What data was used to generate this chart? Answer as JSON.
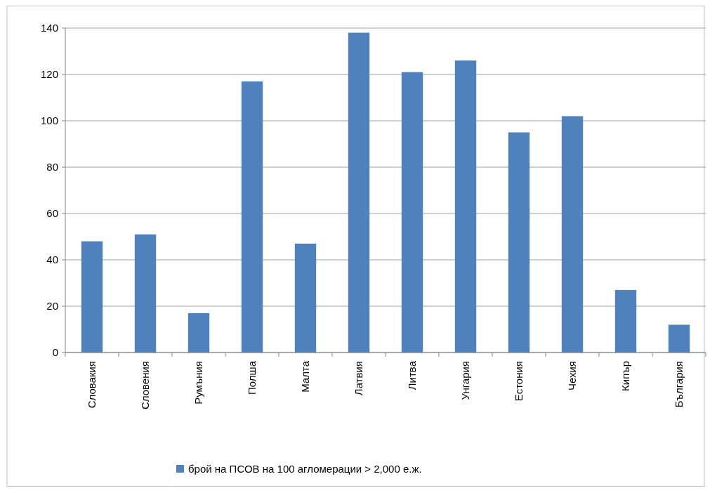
{
  "chart_data": {
    "type": "bar",
    "categories": [
      "Словакия",
      "Словения",
      "Румъния",
      "Полша",
      "Малта",
      "Латвия",
      "Литва",
      "Унгария",
      "Естония",
      "Чехия",
      "Кипър",
      "България"
    ],
    "series": [
      {
        "name": "брой на ПСОВ на 100 агломерации > 2,000 е.ж.",
        "color": "#4f81bd",
        "values": [
          48,
          51,
          17,
          117,
          47,
          138,
          121,
          126,
          95,
          102,
          27,
          12
        ]
      }
    ],
    "ylim": [
      0,
      140
    ],
    "yticks": [
      0,
      20,
      40,
      60,
      80,
      100,
      120,
      140
    ],
    "grid": "y",
    "legend": "bottom"
  }
}
